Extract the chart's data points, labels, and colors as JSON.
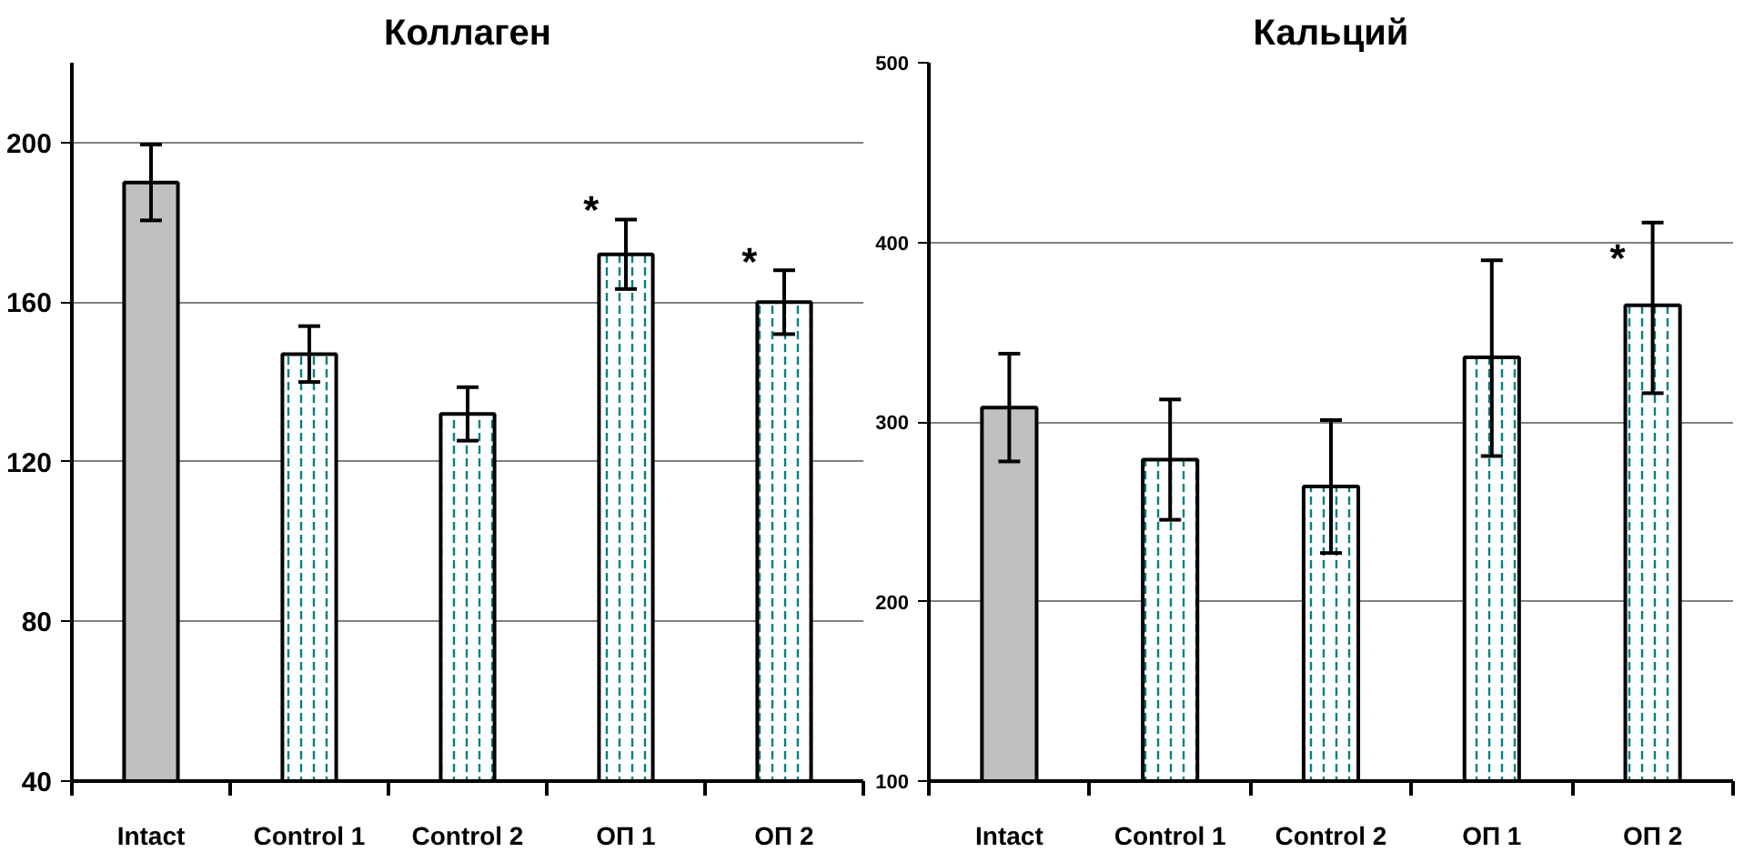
{
  "chart_data": [
    {
      "type": "bar",
      "title": "Коллаген",
      "categories": [
        "Intact",
        "Control 1",
        "Control 2",
        "ОП 1",
        "ОП 2"
      ],
      "values": [
        190,
        147,
        132,
        172,
        160
      ],
      "errors": [
        9.5,
        7,
        6.7,
        8.7,
        8
      ],
      "colors": [
        "#c0c0c0",
        "#ffffff",
        "#ffffff",
        "#ffffff",
        "#ffffff"
      ],
      "ylim": [
        40,
        220
      ],
      "yticks": [
        40,
        80,
        120,
        160,
        200
      ],
      "grid": "y",
      "annotations": [
        {
          "text": "*",
          "x": "ОП 1",
          "y": 183
        },
        {
          "text": "*",
          "x": "ОП 2",
          "y": 170
        }
      ]
    },
    {
      "type": "bar",
      "title": "Кальций",
      "categories": [
        "Intact",
        "Control 1",
        "Control 2",
        "ОП 1",
        "ОП 2"
      ],
      "values": [
        308,
        279,
        264,
        336,
        365
      ],
      "errors": [
        30,
        33.5,
        37,
        [
          281,
          390
        ],
        [
          316,
          411
        ]
      ],
      "colors": [
        "#c0c0c0",
        "#ffffff",
        "#ffffff",
        "#ffffff",
        "#ffffff"
      ],
      "ylim": [
        100,
        500
      ],
      "yticks": [
        100,
        200,
        300,
        400,
        500
      ],
      "grid": "y",
      "annotations": [
        {
          "text": "*",
          "x": "ОП 2",
          "y": 391
        }
      ]
    }
  ]
}
